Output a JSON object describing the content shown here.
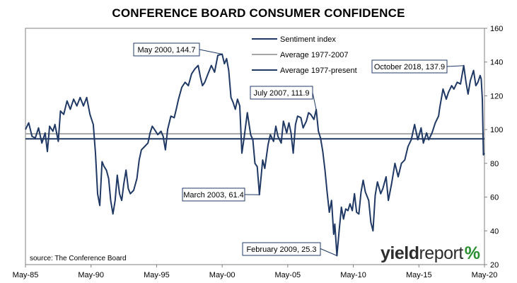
{
  "chart_data": {
    "type": "line",
    "title": "CONFERENCE BOARD CONSUMER CONFIDENCE",
    "source": "source: The Conference Board",
    "brand": {
      "part1": "yield",
      "part2": "report",
      "symbol": "%"
    },
    "x_tick_labels": [
      "May-85",
      "May-90",
      "May-95",
      "May-00",
      "May-05",
      "May-10",
      "May-15",
      "May-20"
    ],
    "xlim": [
      1985.33,
      2020.33
    ],
    "ylim": [
      20,
      160
    ],
    "y_ticks": [
      20,
      40,
      60,
      80,
      100,
      120,
      140,
      160
    ],
    "y_axis_side": "right",
    "legend": {
      "placement": "top-center",
      "entries": [
        "Sentiment index",
        "Average 1977-2007",
        "Average 1977-present"
      ]
    },
    "colors": {
      "sentiment": "#1f3864",
      "average_1977_2007": "#a6a6a6",
      "average_1977_present": "#1f3864",
      "axis": "#808080"
    },
    "averages": {
      "average_1977_2007": 97.5,
      "average_1977_present": 94.5
    },
    "annotations": [
      {
        "text": "May 2000, 144.7",
        "x": 2000.33,
        "y": 144.7
      },
      {
        "text": "July 2007, 111.9",
        "x": 2007.5,
        "y": 111.9
      },
      {
        "text": "March 2003, 61.4",
        "x": 2003.17,
        "y": 61.4
      },
      {
        "text": "February 2009, 25.3",
        "x": 2009.08,
        "y": 25.3
      },
      {
        "text": "October 2018, 137.9",
        "x": 2018.75,
        "y": 137.9
      }
    ],
    "series": [
      {
        "name": "Sentiment index",
        "points": [
          [
            1985.33,
            100
          ],
          [
            1985.58,
            104
          ],
          [
            1985.83,
            96
          ],
          [
            1986.08,
            95
          ],
          [
            1986.33,
            101
          ],
          [
            1986.58,
            92
          ],
          [
            1986.83,
            98
          ],
          [
            1987.0,
            87
          ],
          [
            1987.17,
            102
          ],
          [
            1987.42,
            99
          ],
          [
            1987.58,
            103
          ],
          [
            1987.83,
            93
          ],
          [
            1988.0,
            111
          ],
          [
            1988.25,
            109
          ],
          [
            1988.5,
            117
          ],
          [
            1988.75,
            112
          ],
          [
            1989.0,
            118
          ],
          [
            1989.25,
            114
          ],
          [
            1989.5,
            119
          ],
          [
            1989.75,
            114
          ],
          [
            1990.0,
            119
          ],
          [
            1990.25,
            109
          ],
          [
            1990.5,
            103
          ],
          [
            1990.67,
            86
          ],
          [
            1990.83,
            62
          ],
          [
            1991.0,
            55
          ],
          [
            1991.17,
            81
          ],
          [
            1991.33,
            78
          ],
          [
            1991.5,
            76
          ],
          [
            1991.67,
            71
          ],
          [
            1991.83,
            58
          ],
          [
            1992.0,
            50
          ],
          [
            1992.17,
            58
          ],
          [
            1992.33,
            73
          ],
          [
            1992.5,
            62
          ],
          [
            1992.67,
            58
          ],
          [
            1992.83,
            68
          ],
          [
            1993.0,
            76
          ],
          [
            1993.17,
            65
          ],
          [
            1993.33,
            62
          ],
          [
            1993.58,
            64
          ],
          [
            1993.83,
            71
          ],
          [
            1994.0,
            82
          ],
          [
            1994.17,
            88
          ],
          [
            1994.42,
            90
          ],
          [
            1994.67,
            92
          ],
          [
            1994.83,
            98
          ],
          [
            1995.0,
            102
          ],
          [
            1995.17,
            100
          ],
          [
            1995.42,
            97
          ],
          [
            1995.67,
            99
          ],
          [
            1995.83,
            96
          ],
          [
            1996.0,
            88
          ],
          [
            1996.17,
            100
          ],
          [
            1996.42,
            108
          ],
          [
            1996.67,
            107
          ],
          [
            1996.83,
            112
          ],
          [
            1997.0,
            118
          ],
          [
            1997.25,
            125
          ],
          [
            1997.5,
            128
          ],
          [
            1997.75,
            126
          ],
          [
            1998.0,
            133
          ],
          [
            1998.25,
            136
          ],
          [
            1998.5,
            138
          ],
          [
            1998.67,
            131
          ],
          [
            1998.83,
            126
          ],
          [
            1999.0,
            128
          ],
          [
            1999.25,
            133
          ],
          [
            1999.5,
            138
          ],
          [
            1999.75,
            134
          ],
          [
            2000.0,
            144
          ],
          [
            2000.33,
            144.7
          ],
          [
            2000.5,
            139
          ],
          [
            2000.67,
            142
          ],
          [
            2000.83,
            135
          ],
          [
            2001.0,
            119
          ],
          [
            2001.17,
            116
          ],
          [
            2001.33,
            112
          ],
          [
            2001.5,
            118
          ],
          [
            2001.67,
            114
          ],
          [
            2001.83,
            86
          ],
          [
            2002.0,
            95
          ],
          [
            2002.25,
            110
          ],
          [
            2002.5,
            97
          ],
          [
            2002.67,
            94
          ],
          [
            2002.83,
            80
          ],
          [
            2003.0,
            78
          ],
          [
            2003.17,
            61.4
          ],
          [
            2003.42,
            82
          ],
          [
            2003.58,
            77
          ],
          [
            2003.83,
            91
          ],
          [
            2004.0,
            97
          ],
          [
            2004.25,
            93
          ],
          [
            2004.42,
            102
          ],
          [
            2004.58,
            96
          ],
          [
            2004.83,
            92
          ],
          [
            2005.0,
            105
          ],
          [
            2005.25,
            98
          ],
          [
            2005.42,
            104
          ],
          [
            2005.58,
            98
          ],
          [
            2005.75,
            86
          ],
          [
            2005.92,
            103
          ],
          [
            2006.08,
            108
          ],
          [
            2006.33,
            107
          ],
          [
            2006.5,
            101
          ],
          [
            2006.75,
            105
          ],
          [
            2006.92,
            110
          ],
          [
            2007.08,
            109
          ],
          [
            2007.33,
            106
          ],
          [
            2007.5,
            111.9
          ],
          [
            2007.67,
            99
          ],
          [
            2007.83,
            95
          ],
          [
            2008.0,
            87
          ],
          [
            2008.17,
            76
          ],
          [
            2008.33,
            63
          ],
          [
            2008.5,
            51
          ],
          [
            2008.67,
            58
          ],
          [
            2008.83,
            38
          ],
          [
            2008.92,
            44
          ],
          [
            2009.08,
            25.3
          ],
          [
            2009.25,
            40
          ],
          [
            2009.42,
            54
          ],
          [
            2009.58,
            47
          ],
          [
            2009.75,
            53
          ],
          [
            2009.92,
            52
          ],
          [
            2010.08,
            56
          ],
          [
            2010.25,
            52
          ],
          [
            2010.42,
            62
          ],
          [
            2010.58,
            51
          ],
          [
            2010.75,
            50
          ],
          [
            2010.92,
            63
          ],
          [
            2011.08,
            70
          ],
          [
            2011.25,
            63
          ],
          [
            2011.5,
            58
          ],
          [
            2011.67,
            45
          ],
          [
            2011.83,
            40
          ],
          [
            2012.0,
            61
          ],
          [
            2012.17,
            69
          ],
          [
            2012.42,
            62
          ],
          [
            2012.58,
            65
          ],
          [
            2012.83,
            72
          ],
          [
            2013.0,
            58
          ],
          [
            2013.25,
            68
          ],
          [
            2013.5,
            80
          ],
          [
            2013.75,
            72
          ],
          [
            2014.0,
            80
          ],
          [
            2014.25,
            82
          ],
          [
            2014.5,
            90
          ],
          [
            2014.75,
            94
          ],
          [
            2015.0,
            103
          ],
          [
            2015.25,
            94
          ],
          [
            2015.5,
            101
          ],
          [
            2015.67,
            92
          ],
          [
            2015.92,
            98
          ],
          [
            2016.08,
            94
          ],
          [
            2016.33,
            98
          ],
          [
            2016.58,
            104
          ],
          [
            2016.83,
            108
          ],
          [
            2016.92,
            113
          ],
          [
            2017.17,
            124
          ],
          [
            2017.42,
            118
          ],
          [
            2017.58,
            122
          ],
          [
            2017.83,
            126
          ],
          [
            2018.0,
            124
          ],
          [
            2018.25,
            128
          ],
          [
            2018.5,
            127
          ],
          [
            2018.75,
            137.9
          ],
          [
            2018.92,
            128
          ],
          [
            2019.08,
            121
          ],
          [
            2019.25,
            129
          ],
          [
            2019.5,
            135
          ],
          [
            2019.67,
            126
          ],
          [
            2019.83,
            128
          ],
          [
            2020.0,
            132
          ],
          [
            2020.08,
            130
          ],
          [
            2020.17,
            118
          ],
          [
            2020.25,
            85
          ],
          [
            2020.33,
            86
          ]
        ]
      }
    ]
  }
}
